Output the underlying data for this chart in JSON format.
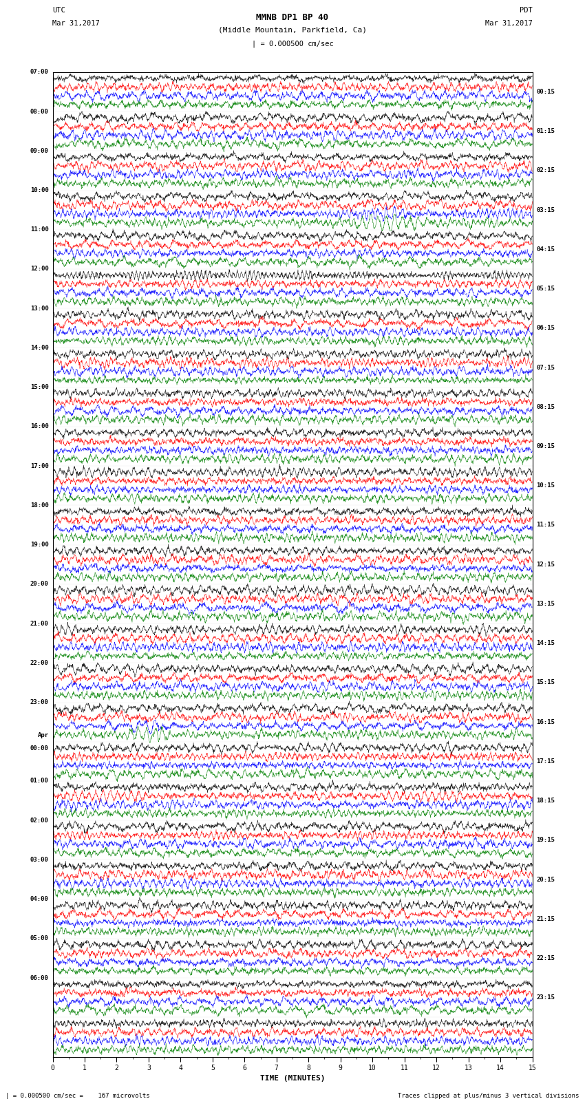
{
  "title_line1": "MMNB DP1 BP 40",
  "title_line2": "(Middle Mountain, Parkfield, Ca)",
  "scale_label": "= 0.000500 cm/sec",
  "utc_label": "UTC",
  "pdt_label": "PDT",
  "date_left": "Mar 31,2017",
  "date_right": "Mar 31,2017",
  "xlabel": "TIME (MINUTES)",
  "footer_left": "= 0.000500 cm/sec =    167 microvolts",
  "footer_right": "Traces clipped at plus/minus 3 vertical divisions",
  "trace_colors": [
    "black",
    "red",
    "blue",
    "green"
  ],
  "num_rows": 25,
  "traces_per_row": 4,
  "minutes_per_row": 15,
  "background_color": "white",
  "left_times_utc": [
    "07:00",
    "08:00",
    "09:00",
    "10:00",
    "11:00",
    "12:00",
    "13:00",
    "14:00",
    "15:00",
    "16:00",
    "17:00",
    "18:00",
    "19:00",
    "20:00",
    "21:00",
    "22:00",
    "23:00",
    "Apr|00:00",
    "01:00",
    "02:00",
    "03:00",
    "04:00",
    "05:00",
    "06:00",
    ""
  ],
  "right_times_pdt": [
    "00:15",
    "01:15",
    "02:15",
    "03:15",
    "04:15",
    "05:15",
    "06:15",
    "07:15",
    "08:15",
    "09:15",
    "10:15",
    "11:15",
    "12:15",
    "13:15",
    "14:15",
    "15:15",
    "16:15",
    "17:15",
    "18:15",
    "19:15",
    "20:15",
    "21:15",
    "22:15",
    "23:15",
    ""
  ],
  "noise_amplitude": 0.1,
  "clip_level": 3.0,
  "special_events": [
    {
      "row": 3,
      "trace": 3,
      "minute": 10.5,
      "amplitude": 3.0,
      "duration": 2.5
    },
    {
      "row": 3,
      "trace": 2,
      "minute": 10.5,
      "amplitude": 1.5,
      "duration": 2.0
    },
    {
      "row": 3,
      "trace": 1,
      "minute": 10.5,
      "amplitude": 1.0,
      "duration": 1.5
    },
    {
      "row": 15,
      "trace": 2,
      "minute": 8.5,
      "amplitude": 2.0,
      "duration": 0.4
    },
    {
      "row": 15,
      "trace": 0,
      "minute": 8.7,
      "amplitude": 1.2,
      "duration": 0.3
    },
    {
      "row": 16,
      "trace": 3,
      "minute": 3.0,
      "amplitude": 2.5,
      "duration": 1.5
    },
    {
      "row": 16,
      "trace": 2,
      "minute": 3.0,
      "amplitude": 1.5,
      "duration": 1.2
    }
  ],
  "fig_width": 8.5,
  "fig_height": 16.13
}
